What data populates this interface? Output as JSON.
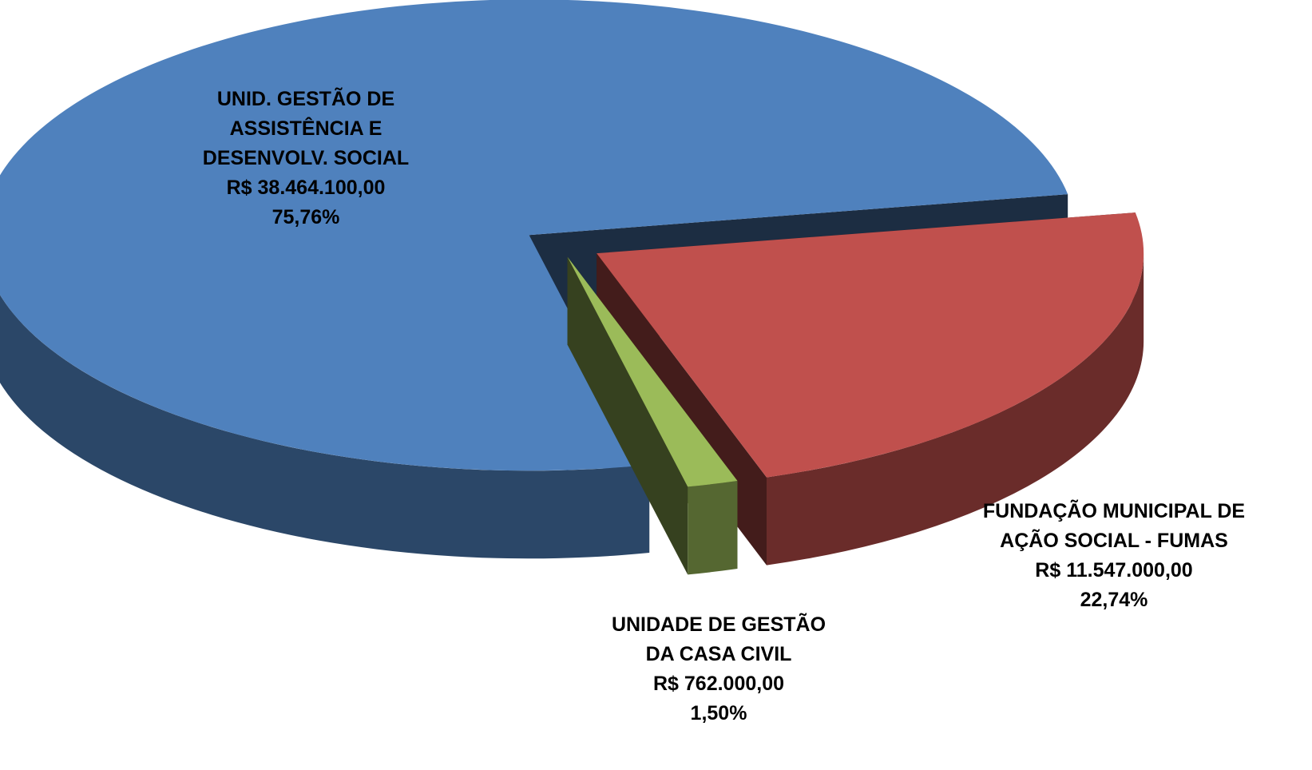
{
  "chart_data": {
    "type": "pie",
    "categories": [
      "UNID. GESTÃO DE\nASSISTÊNCIA E\nDESENVOLV. SOCIAL",
      "FUNDAÇÃO MUNICIPAL DE\nAÇÃO SOCIAL - FUMAS",
      "UNIDADE DE GESTÃO\nDA CASA CIVIL"
    ],
    "values": [
      38464100,
      11547000,
      762000
    ],
    "value_labels": [
      "R$ 38.464.100,00",
      "R$ 11.547.000,00",
      "R$ 762.000,00"
    ],
    "percents": [
      75.76,
      22.74,
      1.5
    ],
    "percent_labels": [
      "75,76%",
      "22,74%",
      "1,50%"
    ],
    "colors": [
      "#4f81bd",
      "#c0504d",
      "#9bbb59"
    ]
  }
}
